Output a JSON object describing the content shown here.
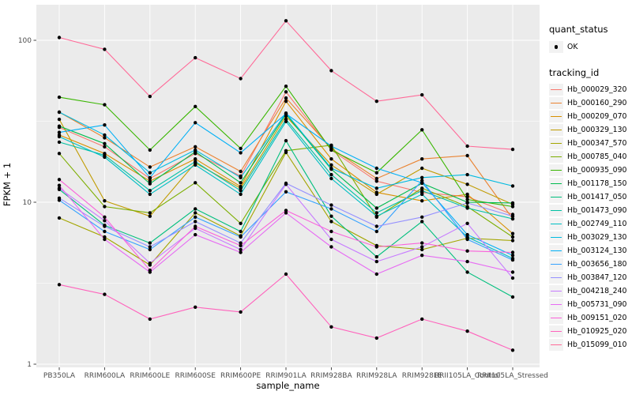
{
  "chart_data": {
    "type": "line",
    "title": "",
    "xlabel": "sample_name",
    "ylabel": "FPKM + 1",
    "y_scale": "log10",
    "ylim": [
      1,
      180
    ],
    "yticks": [
      1,
      10,
      100
    ],
    "ytick_labels": [
      "1",
      "10",
      "100"
    ],
    "grid": "white major+minor gridlines on gray panel",
    "legend_position": "right",
    "categories": [
      "PB350LA",
      "RRIM600LA",
      "RRIM600LE",
      "RRIM600SE",
      "RRIM600PE",
      "RRIM901LA",
      "RRIM928BA",
      "RRIM928LA",
      "RRIM928LE",
      "RRII105LA_Control",
      "RRII105LA_Stressed"
    ],
    "series": [
      {
        "name": "Hb_000029_320",
        "color": "#F8766D",
        "values": [
          29,
          22,
          14,
          20,
          14.5,
          48,
          21,
          13.5,
          11.5,
          10.8,
          8.4
        ]
      },
      {
        "name": "Hb_000160_290",
        "color": "#EA8331",
        "values": [
          36,
          25,
          16.5,
          22,
          15.5,
          44,
          21.5,
          14,
          18.5,
          19.4,
          7.9
        ]
      },
      {
        "name": "Hb_000209_070",
        "color": "#D89000",
        "values": [
          26,
          20,
          13.5,
          18.5,
          12.5,
          42,
          18.5,
          11.5,
          10.2,
          11.2,
          6.4
        ]
      },
      {
        "name": "Hb_000329_130",
        "color": "#C09B00",
        "values": [
          32.5,
          10.2,
          8.2,
          17.5,
          12.2,
          34,
          17,
          11.2,
          16.2,
          12.9,
          9.7
        ]
      },
      {
        "name": "Hb_000347_570",
        "color": "#A3A500",
        "values": [
          8,
          6.1,
          4.1,
          8.6,
          6.2,
          20.3,
          7.6,
          5.4,
          5.1,
          6,
          5.8
        ]
      },
      {
        "name": "Hb_000785_040",
        "color": "#7CAE00",
        "values": [
          20,
          9.4,
          8.6,
          13.2,
          7.4,
          20.8,
          22.5,
          8.1,
          12.2,
          9.4,
          6.1
        ]
      },
      {
        "name": "Hb_000935_090",
        "color": "#39B600",
        "values": [
          44.5,
          40,
          21,
          39,
          21.5,
          52,
          21,
          15.2,
          28,
          10.4,
          9.4
        ]
      },
      {
        "name": "Hb_001178_150",
        "color": "#00BB4E",
        "values": [
          29.5,
          23,
          13,
          20.5,
          13.2,
          35,
          16,
          9.2,
          13.1,
          10,
          9.9
        ]
      },
      {
        "name": "Hb_001417_050",
        "color": "#00BF7D",
        "values": [
          12,
          7.2,
          5.6,
          9.1,
          6.6,
          24,
          8.2,
          4.6,
          7.6,
          3.7,
          2.6
        ]
      },
      {
        "name": "Hb_001473_090",
        "color": "#00C1A3",
        "values": [
          23.5,
          19.5,
          11.8,
          17.8,
          11.8,
          32.5,
          14.8,
          8.6,
          11.8,
          9.2,
          7.9
        ]
      },
      {
        "name": "Hb_002749_110",
        "color": "#00BFC4",
        "values": [
          25.4,
          19,
          11.2,
          17,
          11.2,
          31.5,
          14,
          8.2,
          11.2,
          6.1,
          4.5
        ]
      },
      {
        "name": "Hb_003029_130",
        "color": "#00BAE0",
        "values": [
          36,
          26,
          15.2,
          21,
          14.2,
          35.5,
          16.2,
          12.2,
          14.2,
          14.8,
          12.6
        ]
      },
      {
        "name": "Hb_003124_130",
        "color": "#00B0F6",
        "values": [
          27,
          30,
          14.2,
          31,
          20.2,
          35.2,
          22.2,
          16.2,
          13.2,
          6.3,
          4.7
        ]
      },
      {
        "name": "Hb_003656_180",
        "color": "#35A2FF",
        "values": [
          10.3,
          6.6,
          5.1,
          8.1,
          6.1,
          11.6,
          9.1,
          6.6,
          13.6,
          5.9,
          4.4
        ]
      },
      {
        "name": "Hb_003847_120",
        "color": "#9590FF",
        "values": [
          10.6,
          7.1,
          5.3,
          7.6,
          5.6,
          13.1,
          9.6,
          7.1,
          8.1,
          9.9,
          8.2
        ]
      },
      {
        "name": "Hb_004218_240",
        "color": "#C77CFF",
        "values": [
          12.2,
          7.7,
          4.2,
          6.9,
          5.1,
          12.9,
          5.9,
          4.3,
          5.3,
          7.4,
          3.4
        ]
      },
      {
        "name": "Hb_005731_090",
        "color": "#E76BF3",
        "values": [
          12.7,
          5.9,
          3.7,
          6.3,
          4.9,
          8.6,
          5.3,
          3.6,
          4.7,
          4.3,
          3.7
        ]
      },
      {
        "name": "Hb_009151_020",
        "color": "#FA62DB",
        "values": [
          13.8,
          8.1,
          3.8,
          7.1,
          5.4,
          8.9,
          6.6,
          5.3,
          5.6,
          5,
          4.9
        ]
      },
      {
        "name": "Hb_010925_020",
        "color": "#FF62BC",
        "values": [
          3.1,
          2.7,
          1.9,
          2.25,
          2.1,
          3.6,
          1.7,
          1.45,
          1.9,
          1.6,
          1.22
        ]
      },
      {
        "name": "Hb_015099_010",
        "color": "#FF6A98",
        "values": [
          104,
          88,
          45,
          78,
          58,
          132,
          65,
          42,
          46,
          22.2,
          21.2
        ]
      }
    ],
    "legends": {
      "quant_status": {
        "title": "quant_status",
        "items": [
          {
            "label": "OK",
            "marker": "black-point"
          }
        ]
      },
      "tracking_id": {
        "title": "tracking_id"
      }
    },
    "colors": {
      "panel_bg": "#EBEBEB",
      "gridline": "#FFFFFF",
      "point": "#000000",
      "tick_text": "#4D4D4D",
      "axis_title": "#000000",
      "legend_key_bg": "#F2F2F2"
    }
  }
}
